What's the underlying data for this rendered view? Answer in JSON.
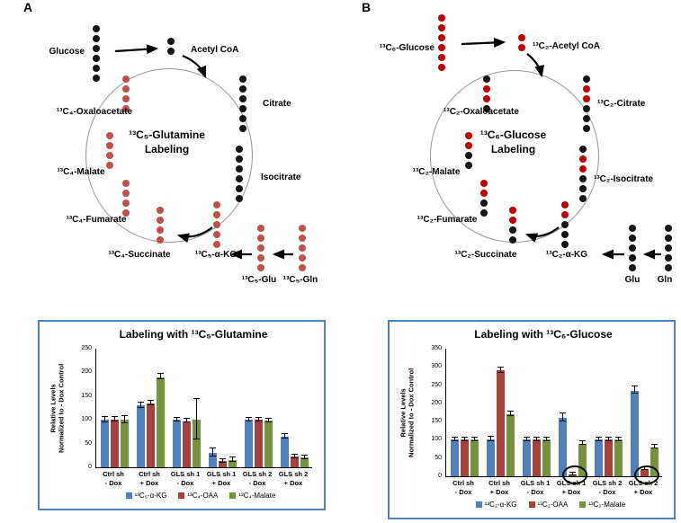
{
  "panels": {
    "a": "A",
    "b": "B"
  },
  "colors": {
    "dot_black": "#161616",
    "dot_red_a": "#c0504d",
    "dot_red_b": "#c00000",
    "box_border": "#4f81bd",
    "circle_gray": "#9a9a9a"
  },
  "diagram_a": {
    "center_title": {
      "line1": "¹³C₅-Glutamine",
      "line2": "Labeling"
    },
    "metabolites": {
      "glucose": {
        "label": "Glucose",
        "dots": "kkkkkk"
      },
      "acetyl_coa": {
        "label": "Acetyl CoA",
        "dots": "kk"
      },
      "oxaloacetate": {
        "label": "¹³C₄-Oxaloacetate",
        "dots": "rrrr"
      },
      "citrate": {
        "label": "Citrate",
        "dots": "kkkkkk"
      },
      "malate": {
        "label": "¹³C₄-Malate",
        "dots": "rrrr"
      },
      "isocitrate": {
        "label": "Isocitrate",
        "dots": "kkkkkk"
      },
      "fumarate": {
        "label": "¹³C₄-Fumarate",
        "dots": "rrrr"
      },
      "succinate": {
        "label": "¹³C₄-Succinate",
        "dots": "rrrr"
      },
      "alpha_kg": {
        "label": "¹³C₅-α-KG",
        "dots": "rrrrr"
      },
      "glutamate": {
        "label": "¹³C₅-Glu",
        "dots": "rrrrr"
      },
      "glutamine": {
        "label": "¹³C₅-Gln",
        "dots": "rrrrr"
      }
    }
  },
  "diagram_b": {
    "center_title": {
      "line1": "¹³C₆-Glucose",
      "line2": "Labeling"
    },
    "metabolites": {
      "glucose": {
        "label": "¹³C₆-Glucose",
        "dots": "rrrrrr"
      },
      "acetyl_coa": {
        "label": "¹³C₂-Acetyl CoA",
        "dots": "rr"
      },
      "oxaloacetate": {
        "label": "¹³C₂-Oxaloacetate",
        "dots": "krrk"
      },
      "citrate": {
        "label": "¹³C₂-Citrate",
        "dots": "krrkkk"
      },
      "malate": {
        "label": "¹³C₂-Malate",
        "dots": "rrkk"
      },
      "isocitrate": {
        "label": "¹³C₂-Isocitrate",
        "dots": "krrkkk"
      },
      "fumarate": {
        "label": "¹³C₂-Fumarate",
        "dots": "rrkk"
      },
      "succinate": {
        "label": "¹³C₂-Succinate",
        "dots": "rrkk"
      },
      "alpha_kg": {
        "label": "¹³C₂-α-KG",
        "dots": "rrkkk"
      },
      "glutamate": {
        "label": "Glu",
        "dots": "kkkkk"
      },
      "glutamine": {
        "label": "Gln",
        "dots": "kkkkk"
      }
    }
  },
  "chart_data": [
    {
      "type": "bar",
      "title": "Labeling with ¹³C₅-Glutamine",
      "ylabel_lines": [
        "Relative Levels",
        "Normalized to - Dox Control"
      ],
      "ylim": [
        0,
        250
      ],
      "ytick_step": 50,
      "grid": false,
      "legend_position": "bottom",
      "categories": [
        [
          "Ctrl sh",
          "- Dox"
        ],
        [
          "Ctrl sh",
          "+ Dox"
        ],
        [
          "GLS sh 1",
          "- Dox"
        ],
        [
          "GLS sh 1",
          "+ Dox"
        ],
        [
          "GLS sh 2",
          "- Dox"
        ],
        [
          "GLS sh 2",
          "+ Dox"
        ]
      ],
      "series": [
        {
          "name": "¹³C₅-α-KG",
          "color": "#4f81bd",
          "values": [
            100,
            130,
            100,
            30,
            100,
            65
          ],
          "errors": [
            5,
            5,
            3,
            8,
            3,
            4
          ]
        },
        {
          "name": "¹³C₄-OAA",
          "color": "#a6423e",
          "values": [
            100,
            135,
            97,
            13,
            100,
            22
          ],
          "errors": [
            4,
            4,
            3,
            3,
            3,
            3
          ]
        },
        {
          "name": "¹³C₄-Malate",
          "color": "#76923c",
          "values": [
            100,
            190,
            100,
            15,
            98,
            20
          ],
          "errors": [
            7,
            5,
            42,
            4,
            3,
            3
          ]
        }
      ],
      "circled": []
    },
    {
      "type": "bar",
      "title": "Labeling with ¹³C₆-Glucose",
      "ylabel_lines": [
        "Relative Levels",
        "Normalized to - Dox Control"
      ],
      "ylim": [
        0,
        350
      ],
      "ytick_step": 50,
      "grid": false,
      "legend_position": "bottom",
      "categories": [
        [
          "Ctrl sh",
          "- Dox"
        ],
        [
          "Ctrl sh",
          "+ Dox"
        ],
        [
          "GLS sh 1",
          "- Dox"
        ],
        [
          "GLS sh 1",
          "+ Dox"
        ],
        [
          "GLS sh 2",
          "- Dox"
        ],
        [
          "GLS sh 2",
          "+ Dox"
        ]
      ],
      "series": [
        {
          "name": "¹³C₂-α-KG",
          "color": "#4f81bd",
          "values": [
            100,
            100,
            100,
            160,
            100,
            235
          ],
          "errors": [
            4,
            5,
            3,
            10,
            4,
            8
          ]
        },
        {
          "name": "¹³C₂-OAA",
          "color": "#a6423e",
          "values": [
            100,
            290,
            100,
            5,
            100,
            20
          ],
          "errors": [
            3,
            6,
            4,
            2,
            3,
            3
          ]
        },
        {
          "name": "¹³C₂-Malate",
          "color": "#76923c",
          "values": [
            100,
            170,
            100,
            90,
            100,
            80
          ],
          "errors": [
            3,
            5,
            3,
            4,
            3,
            3
          ]
        }
      ],
      "circled": [
        {
          "group": 3,
          "series": 1
        },
        {
          "group": 5,
          "series": 1
        }
      ]
    }
  ]
}
